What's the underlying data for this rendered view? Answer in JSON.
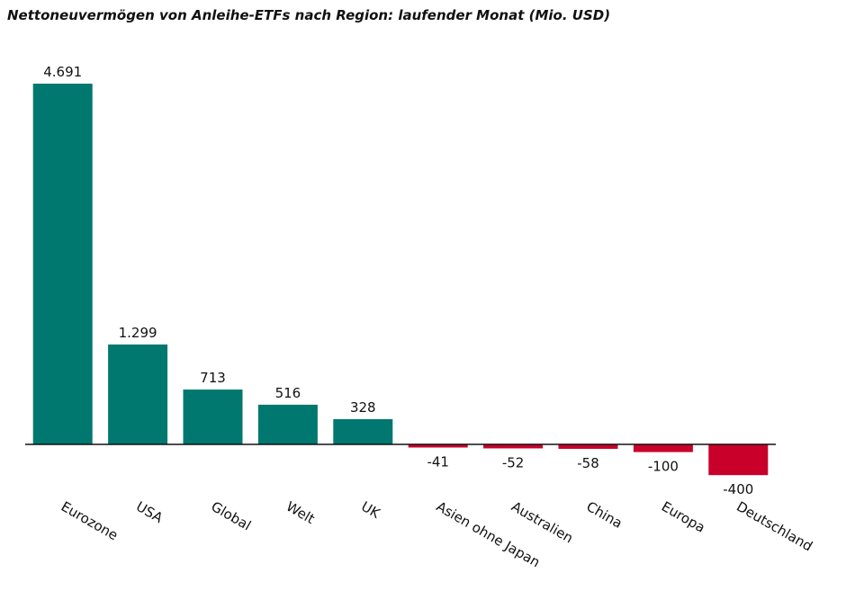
{
  "chart_data": {
    "type": "bar",
    "title": "Nettoneuvermögen von Anleihe-ETFs nach Region: laufender Monat (Mio. USD)",
    "categories": [
      "Eurozone",
      "USA",
      "Global",
      "Welt",
      "UK",
      "Asien ohne Japan",
      "Australien",
      "China",
      "Europa",
      "Deutschland"
    ],
    "values": [
      4691,
      1299,
      713,
      516,
      328,
      -41,
      -52,
      -58,
      -100,
      -400
    ],
    "value_labels": [
      "4.691",
      "1.299",
      "713",
      "516",
      "328",
      "-41",
      "-52",
      "-58",
      "-100",
      "-400"
    ],
    "color": "#00786f",
    "negative_color": "#c8002a"
  }
}
